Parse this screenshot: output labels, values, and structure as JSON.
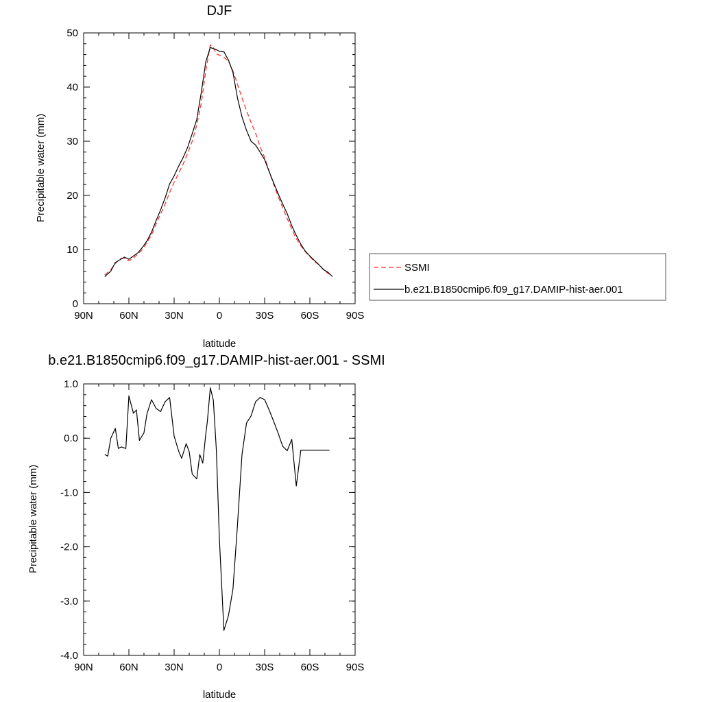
{
  "chart_data": [
    {
      "type": "line",
      "title": "DJF",
      "xlabel": "latitude",
      "ylabel": "Precipitable water (mm)",
      "xlim": [
        -90,
        90
      ],
      "ylim": [
        0,
        50
      ],
      "x_ticks": [
        -90,
        -60,
        -30,
        0,
        30,
        60,
        90
      ],
      "x_tick_labels": [
        "90N",
        "60N",
        "30N",
        "0",
        "30S",
        "60S",
        "90S"
      ],
      "y_ticks": [
        0,
        10,
        20,
        30,
        40,
        50
      ],
      "y_tick_labels": [
        "0",
        "10",
        "20",
        "30",
        "40",
        "50"
      ],
      "legend_placement": "right",
      "series": [
        {
          "name": "SSMI",
          "color": "#ff3333",
          "dash": "dashed",
          "x": [
            -76,
            -72,
            -69,
            -66,
            -63,
            -60,
            -57,
            -54,
            -51,
            -48,
            -45,
            -42,
            -39,
            -36,
            -33,
            -30,
            -27,
            -24,
            -21,
            -18,
            -15,
            -12,
            -9,
            -6,
            -4,
            -2,
            0,
            3,
            6,
            9,
            12,
            15,
            18,
            21,
            24,
            27,
            30,
            33,
            36,
            39,
            42,
            45,
            48,
            51,
            54,
            57,
            60,
            63,
            66,
            69,
            72,
            75
          ],
          "y": [
            5.3,
            6.3,
            7.4,
            8.3,
            8.4,
            7.9,
            8.4,
            9.2,
            10.0,
            11.3,
            12.7,
            14.7,
            16.5,
            18.4,
            20.5,
            22.4,
            24.1,
            25.8,
            27.8,
            30.0,
            33.0,
            37.0,
            43.0,
            47.8,
            47.3,
            46.1,
            45.9,
            45.5,
            44.8,
            43.0,
            40.5,
            38.0,
            35.6,
            33.5,
            31.5,
            29.0,
            27.0,
            24.5,
            22.0,
            19.8,
            17.7,
            15.7,
            13.8,
            12.0,
            10.7,
            9.6,
            8.7,
            7.8,
            7.2,
            6.3,
            5.6,
            5.2
          ]
        },
        {
          "name": "b.e21.B1850cmip6.f09_g17.DAMIP-hist-aer.001",
          "color": "#000000",
          "dash": "solid",
          "x": [
            -76,
            -72,
            -69,
            -66,
            -63,
            -60,
            -57,
            -54,
            -51,
            -48,
            -45,
            -42,
            -39,
            -36,
            -33,
            -30,
            -27,
            -24,
            -21,
            -18,
            -15,
            -12,
            -9,
            -6,
            -4,
            -2,
            0,
            3,
            6,
            9,
            12,
            15,
            18,
            21,
            24,
            27,
            30,
            33,
            36,
            39,
            42,
            45,
            48,
            51,
            54,
            57,
            60,
            63,
            66,
            69,
            72,
            75
          ],
          "y": [
            5.0,
            6.0,
            7.6,
            8.1,
            8.6,
            8.2,
            8.8,
            9.4,
            10.4,
            11.6,
            13.2,
            15.3,
            17.3,
            19.5,
            22.1,
            23.6,
            25.4,
            27.0,
            28.9,
            31.4,
            34.0,
            39.0,
            44.7,
            47.3,
            47.1,
            46.9,
            46.6,
            46.5,
            45.0,
            42.7,
            38.0,
            34.5,
            32.0,
            30.0,
            29.3,
            28.0,
            26.6,
            24.4,
            22.3,
            20.3,
            18.4,
            16.6,
            14.4,
            12.6,
            11.0,
            9.7,
            8.8,
            8.0,
            7.2,
            6.3,
            5.8,
            5.0
          ]
        }
      ]
    },
    {
      "type": "line",
      "title": "b.e21.B1850cmip6.f09_g17.DAMIP-hist-aer.001 - SSMI",
      "xlabel": "latitude",
      "ylabel": "Precipitable water (mm)",
      "xlim": [
        -90,
        90
      ],
      "ylim": [
        -4,
        1
      ],
      "x_ticks": [
        -90,
        -60,
        -30,
        0,
        30,
        60,
        90
      ],
      "x_tick_labels": [
        "90N",
        "60N",
        "30N",
        "0",
        "30S",
        "60S",
        "90S"
      ],
      "y_ticks": [
        -4,
        -3,
        -2,
        -1,
        0,
        1
      ],
      "y_tick_labels": [
        "-4.0",
        "-3.0",
        "-2.0",
        "-1.0",
        "0.0",
        "1.0"
      ],
      "series": [
        {
          "color": "#000000",
          "dash": "solid",
          "x": [
            -76,
            -74,
            -72,
            -69,
            -67,
            -65,
            -62,
            -60,
            -57,
            -55,
            -53,
            -50,
            -48,
            -45,
            -42,
            -39,
            -36,
            -33,
            -30,
            -27,
            -25,
            -22,
            -20,
            -18,
            -15,
            -13,
            -11,
            -9,
            -8,
            -6,
            -4,
            -2,
            0,
            3,
            6,
            9,
            12,
            15,
            18,
            21,
            24,
            27,
            30,
            33,
            36,
            39,
            42,
            45,
            48,
            51,
            54,
            57,
            60,
            63,
            66,
            68,
            70,
            73
          ],
          "y": [
            -0.3,
            -0.33,
            0.0,
            0.18,
            -0.19,
            -0.16,
            -0.19,
            0.78,
            0.46,
            0.52,
            -0.04,
            0.1,
            0.45,
            0.71,
            0.55,
            0.49,
            0.67,
            0.75,
            0.04,
            -0.24,
            -0.37,
            -0.1,
            -0.25,
            -0.66,
            -0.75,
            -0.3,
            -0.46,
            0.08,
            0.3,
            0.93,
            0.7,
            -0.22,
            -1.85,
            -3.54,
            -3.27,
            -2.78,
            -1.6,
            -0.3,
            0.28,
            0.41,
            0.67,
            0.75,
            0.71,
            0.52,
            0.31,
            0.09,
            -0.15,
            -0.23,
            -0.02,
            -0.88,
            -0.22,
            -0.22,
            -0.22,
            -0.22,
            -0.22,
            -0.22,
            -0.22,
            -0.22
          ]
        }
      ]
    }
  ]
}
